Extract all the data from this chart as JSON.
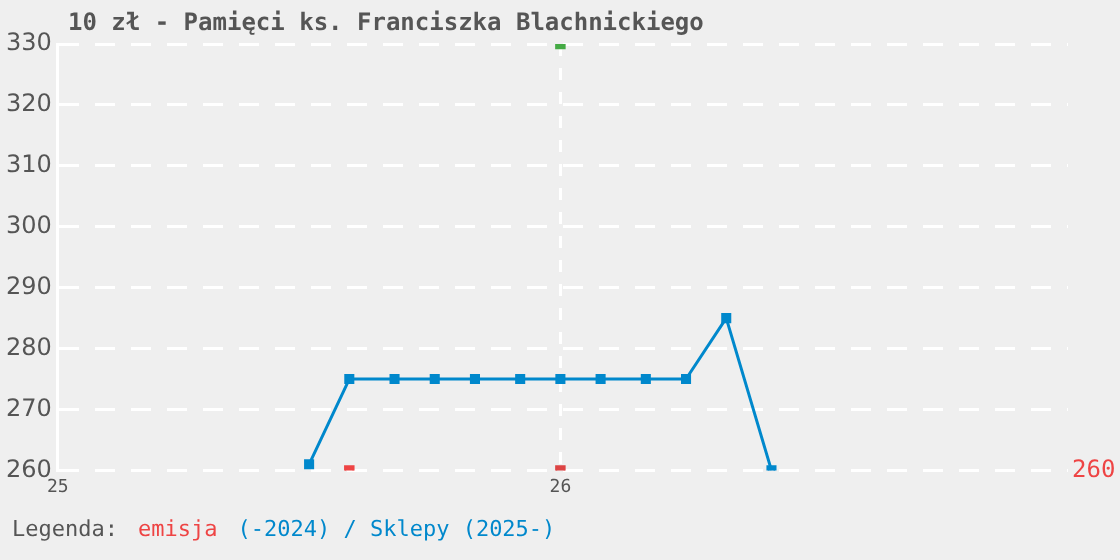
{
  "chart_data": {
    "type": "line",
    "title": "10 zł - Pamięci ks. Franciszka Blachnickiego",
    "legend_title": "Legenda:",
    "xlim": [
      25,
      27.01
    ],
    "xticks": [
      25,
      26
    ],
    "ylim": [
      260,
      330
    ],
    "yticks": [
      260,
      270,
      280,
      290,
      300,
      310,
      320,
      330
    ],
    "grid": true,
    "legend": "bottom",
    "marker": "square",
    "line_style": "solid",
    "annotations": [
      "260"
    ],
    "series": [
      {
        "name": "emisja",
        "type": "scatter",
        "color": "#ee4444",
        "x": [
          25.58
        ],
        "values": [
          260
        ]
      },
      {
        "type": "scatter",
        "color": "#44aa44",
        "x": [
          26
        ],
        "values": [
          330
        ]
      },
      {
        "type": "scatter",
        "color": "#dd4444",
        "x": [
          26
        ],
        "values": [
          260
        ]
      },
      {
        "name": "(-2024) / Sklepy (2025-)",
        "color": "#0088cc",
        "x": [
          25.5,
          25.58,
          25.67,
          25.75,
          25.83,
          25.92,
          26,
          26.08,
          26.17,
          26.25,
          26.33,
          26.42
        ],
        "values": [
          261,
          275,
          275,
          275,
          275,
          275,
          275,
          275,
          275,
          275,
          285,
          260
        ]
      }
    ]
  }
}
